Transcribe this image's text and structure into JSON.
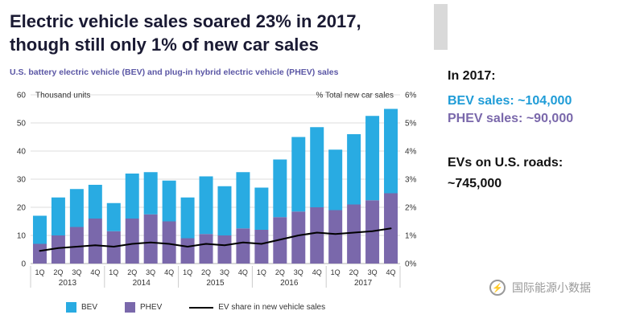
{
  "header": {
    "title_line1": "Electric vehicle sales soared 23% in 2017,",
    "title_line2": "though still only 1% of new car sales",
    "subtitle": "U.S. battery electric vehicle (BEV) and plug-in hybrid electric vehicle (PHEV) sales"
  },
  "chart_data": {
    "type": "bar",
    "stacked": true,
    "title": "U.S. battery electric vehicle (BEV) and plug-in hybrid electric vehicle (PHEV) sales",
    "left_axis": {
      "label": "Thousand units",
      "range": [
        0,
        60
      ],
      "ticks": [
        "60",
        "50",
        "40",
        "30",
        "20",
        "10",
        "0"
      ]
    },
    "right_axis": {
      "label": "% Total new car sales",
      "range": [
        0,
        6
      ],
      "ticks": [
        "6%",
        "5%",
        "4%",
        "3%",
        "2%",
        "1%",
        "0%"
      ]
    },
    "years": [
      "2013",
      "2014",
      "2015",
      "2016",
      "2017"
    ],
    "quarters": [
      "1Q",
      "2Q",
      "3Q",
      "4Q"
    ],
    "series": [
      {
        "name": "BEV",
        "color": "#29abe2",
        "values": [
          10,
          13.5,
          13.5,
          12,
          10,
          16,
          15,
          14.5,
          14.5,
          20.5,
          17.5,
          20,
          15,
          20.5,
          26.5,
          28.5,
          21.5,
          25,
          30,
          30
        ]
      },
      {
        "name": "PHEV",
        "color": "#7a68ab",
        "values": [
          7,
          10,
          13,
          16,
          11.5,
          16,
          17.5,
          15,
          9,
          10.5,
          10,
          12.5,
          12,
          16.5,
          18.5,
          20,
          19,
          21,
          22.5,
          25
        ]
      }
    ],
    "line": {
      "name": "EV share in new vehicle sales",
      "color": "#000000",
      "unit": "%",
      "values": [
        0.45,
        0.55,
        0.6,
        0.65,
        0.6,
        0.7,
        0.75,
        0.7,
        0.6,
        0.7,
        0.65,
        0.75,
        0.7,
        0.85,
        1.0,
        1.1,
        1.05,
        1.1,
        1.15,
        1.25
      ]
    },
    "legend_position": "bottom",
    "grid": true
  },
  "legend": {
    "bev": "BEV",
    "phev": "PHEV",
    "line": "EV share in new vehicle sales"
  },
  "sidebar": {
    "heading": "In 2017:",
    "bev_line": "BEV sales: ~104,000",
    "phev_line": "PHEV sales: ~90,000",
    "roads_heading": "EVs on U.S. roads:",
    "roads_value": "~745,000"
  },
  "watermark": {
    "text": "国际能源小数据"
  },
  "colors": {
    "bev": "#29abe2",
    "phev": "#7a68ab",
    "bev_text": "#1f9cd7",
    "phev_text": "#7a68ab",
    "line": "#000000"
  }
}
